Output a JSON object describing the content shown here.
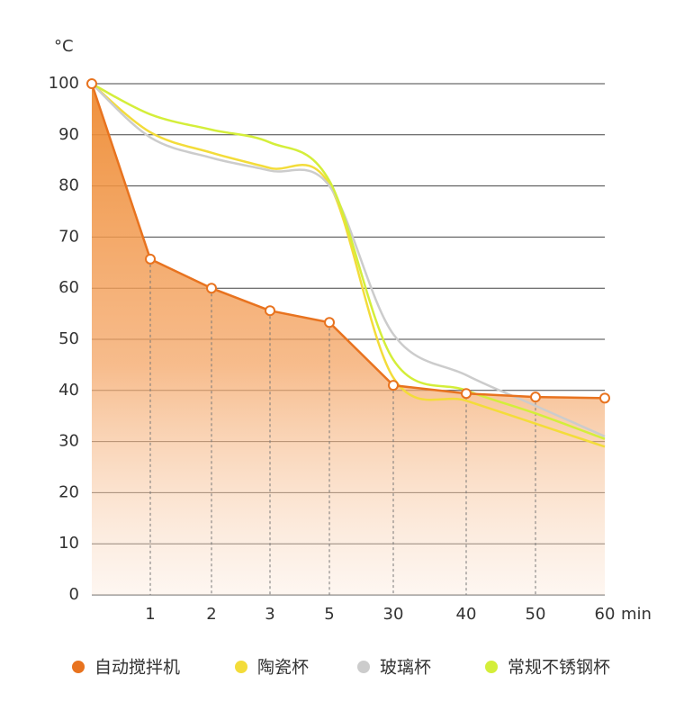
{
  "chart_data": {
    "type": "line",
    "y_unit": "°C",
    "xlabel": "min",
    "categories": [
      null,
      "1",
      "2",
      "3",
      "5",
      "30",
      "40",
      "50",
      "60"
    ],
    "ylim": [
      0,
      100
    ],
    "yticks": [
      0,
      10,
      20,
      30,
      40,
      50,
      60,
      70,
      80,
      90,
      100
    ],
    "grid": true,
    "series": [
      {
        "name": "自动搅拌机",
        "color": "#e8731f",
        "values": [
          100,
          65.7,
          60,
          55.6,
          53.3,
          41,
          39.4,
          38.7,
          38.5
        ]
      },
      {
        "name": "陶瓷杯",
        "color": "#f3dc3a",
        "values": [
          100,
          90.5,
          86.5,
          83.5,
          80.3,
          42.5,
          38,
          33.5,
          29
        ]
      },
      {
        "name": "玻璃杯",
        "color": "#cccccc",
        "values": [
          100,
          89.5,
          85.5,
          83,
          80,
          51,
          43,
          37,
          31
        ]
      },
      {
        "name": "常规不锈钢杯",
        "color": "#d4ee3a",
        "values": [
          100,
          94,
          91,
          88.5,
          81,
          46,
          40,
          35.5,
          30.5
        ]
      }
    ]
  }
}
